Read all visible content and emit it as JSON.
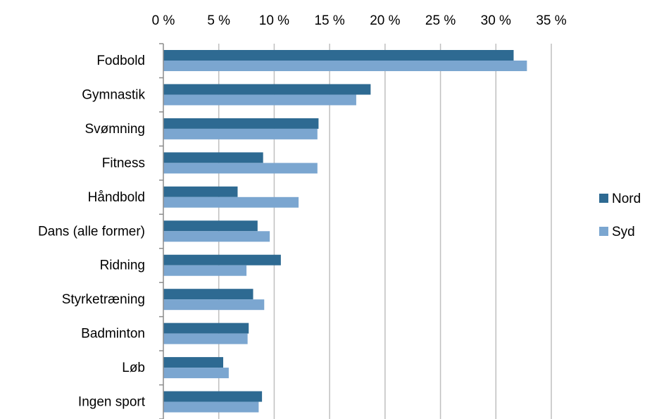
{
  "chart_data": {
    "type": "bar",
    "orientation": "horizontal",
    "categories": [
      "Fodbold",
      "Gymnastik",
      "Svømning",
      "Fitness",
      "Håndbold",
      "Dans (alle former)",
      "Ridning",
      "Styrketræning",
      "Badminton",
      "Løb",
      "Ingen sport"
    ],
    "series": [
      {
        "name": "Nord",
        "color": "#2e6a92",
        "values": [
          31.6,
          18.7,
          14.0,
          9.0,
          6.7,
          8.5,
          10.6,
          8.1,
          7.7,
          5.4,
          8.9
        ]
      },
      {
        "name": "Syd",
        "color": "#7ba6d0",
        "values": [
          32.8,
          17.4,
          13.9,
          13.9,
          12.2,
          9.6,
          7.5,
          9.1,
          7.6,
          5.9,
          8.6
        ]
      }
    ],
    "x_ticks": [
      "0 %",
      "5 %",
      "10 %",
      "15 %",
      "20 %",
      "25 %",
      "30 %",
      "35 %"
    ],
    "xlim": [
      0,
      35
    ],
    "x_axis_position": "top",
    "grid": true,
    "legend_position": "right"
  }
}
